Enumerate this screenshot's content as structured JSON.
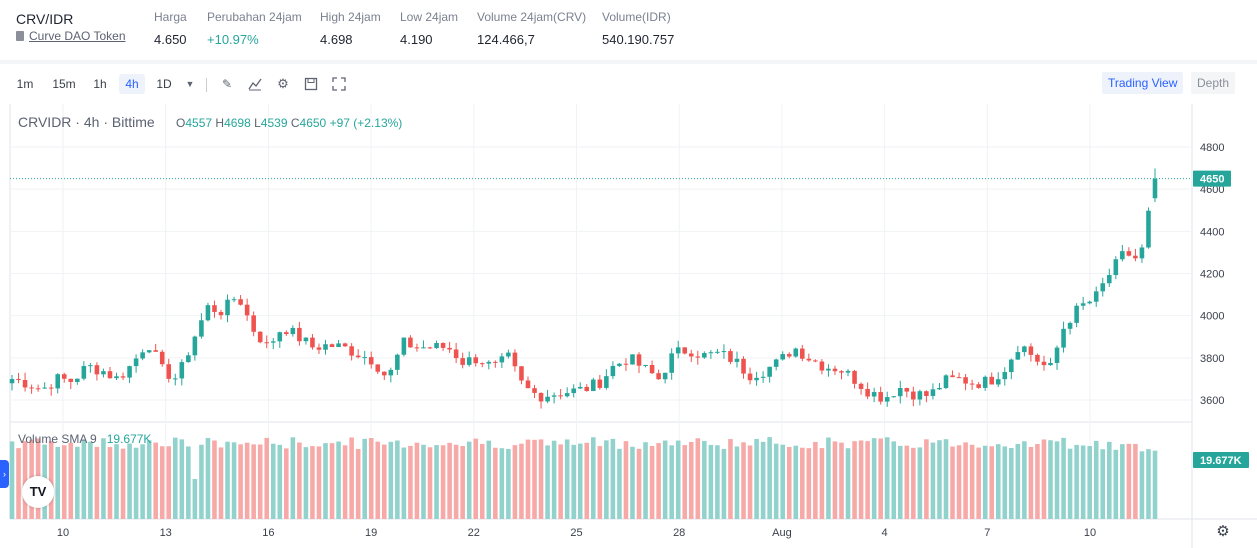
{
  "ticker": {
    "pair": "CRV/IDR",
    "token_name": "Curve DAO Token",
    "stats": [
      {
        "label": "Harga",
        "value": "4.650",
        "color": "default"
      },
      {
        "label": "Perubahan 24jam",
        "value": "+10.97%",
        "color": "green"
      },
      {
        "label": "High 24jam",
        "value": "4.698",
        "color": "default"
      },
      {
        "label": "Low 24jam",
        "value": "4.190",
        "color": "default"
      },
      {
        "label": "Volume 24jam(CRV)",
        "value": "124.466,7",
        "color": "default"
      },
      {
        "label": "Volume(IDR)",
        "value": "540.190.757",
        "color": "default"
      }
    ]
  },
  "toolbar": {
    "timeframes": [
      "1m",
      "15m",
      "1h",
      "4h",
      "1D"
    ],
    "active_timeframe": "4h",
    "icons": [
      "dropdown-icon",
      "draw-icon",
      "indicator-icon",
      "settings-icon",
      "save-icon",
      "fullscreen-icon"
    ],
    "view_trading": "Trading View",
    "view_depth": "Depth"
  },
  "legend": {
    "title": "CRVIDR · 4h · Bittime",
    "o_label": "O",
    "o_val": "4557",
    "h_label": "H",
    "h_val": "4698",
    "l_label": "L",
    "l_val": "4539",
    "c_label": "C",
    "c_val": "4650",
    "change": "+97 (+2.13%)"
  },
  "volume_legend": {
    "label": "Volume SMA 9",
    "value": "19.677K"
  },
  "colors": {
    "up": "#26a69a",
    "down": "#ef5350",
    "vol_up": "#92d2cc",
    "vol_down": "#f7a9a7",
    "accent": "#2962ff"
  },
  "chart_data": {
    "type": "candlestick",
    "ylim": [
      3500,
      4900
    ],
    "y_ticks": [
      3600,
      3800,
      4000,
      4200,
      4400,
      4600,
      4800
    ],
    "x_labels": [
      "10",
      "13",
      "16",
      "19",
      "22",
      "25",
      "28",
      "Aug",
      "4",
      "7",
      "10"
    ],
    "last_price": "4650",
    "volume_label": "19.677K",
    "close_anchors": [
      3700,
      3680,
      3650,
      3700,
      3690,
      3760,
      3740,
      3700,
      3770,
      3880,
      3740,
      3700,
      3880,
      4040,
      4020,
      4100,
      3940,
      3850,
      3950,
      3900,
      3850,
      3860,
      3850,
      3820,
      3790,
      3700,
      3870,
      3850,
      3850,
      3850,
      3780,
      3800,
      3750,
      3800,
      3660,
      3620,
      3630,
      3640,
      3650,
      3680,
      3760,
      3800,
      3750,
      3700,
      3820,
      3840,
      3810,
      3820,
      3790,
      3720,
      3740,
      3780,
      3850,
      3800,
      3760,
      3750,
      3700,
      3640,
      3610,
      3660,
      3630,
      3620,
      3690,
      3700,
      3680,
      3690,
      3750,
      3870,
      3800,
      3740,
      3960,
      4040,
      4080,
      4200,
      4300,
      4260,
      4650
    ],
    "candles": 176
  }
}
